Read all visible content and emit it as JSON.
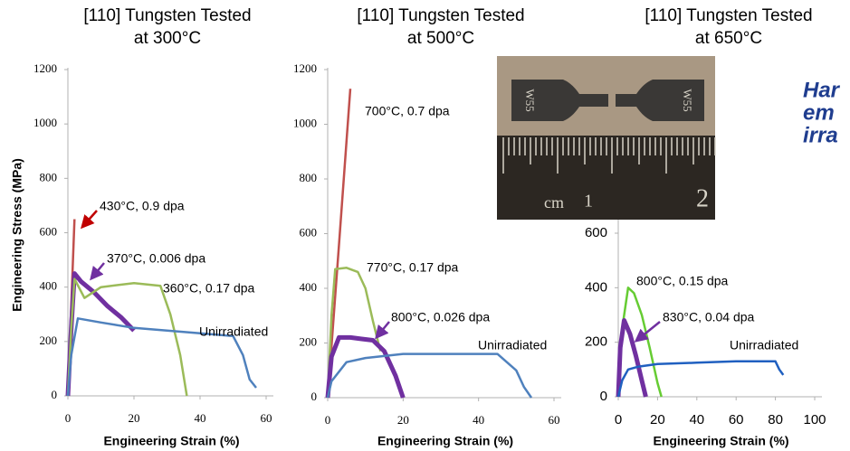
{
  "chart_data": [
    {
      "type": "line",
      "title": [
        "[110] Tungsten Tested",
        "at 300°C"
      ],
      "x_label": "Engineering Strain (%)",
      "y_label": "Engineering Stress (MPa)",
      "xlim": [
        0,
        60
      ],
      "xticks": [
        0,
        20,
        40,
        60
      ],
      "ylim": [
        0,
        1200
      ],
      "yticks": [
        0,
        200,
        400,
        600,
        800,
        1000,
        1200
      ],
      "series": [
        {
          "name": "430°C, 0.9 dpa",
          "color": "#c0504d",
          "x": [
            0,
            1,
            2
          ],
          "values": [
            0,
            330,
            650
          ]
        },
        {
          "name": "370°C, 0.006 dpa",
          "color": "#7030a0",
          "x": [
            0,
            1,
            2,
            4,
            8,
            12,
            16,
            20
          ],
          "values": [
            0,
            250,
            450,
            420,
            380,
            330,
            290,
            240
          ]
        },
        {
          "name": "360°C, 0.17 dpa",
          "color": "#9bbb59",
          "x": [
            0,
            1,
            2,
            5,
            10,
            20,
            28,
            31,
            34,
            36
          ],
          "values": [
            0,
            250,
            430,
            360,
            400,
            415,
            405,
            300,
            150,
            0
          ]
        },
        {
          "name": "Unirradiated",
          "color": "#4f81bd",
          "x": [
            0,
            1,
            3,
            10,
            20,
            30,
            40,
            50,
            53,
            55,
            57
          ],
          "values": [
            0,
            150,
            285,
            270,
            250,
            240,
            230,
            220,
            150,
            60,
            30
          ]
        }
      ]
    },
    {
      "type": "line",
      "title": [
        "[110] Tungsten Tested",
        "at 500°C"
      ],
      "x_label": "Engineering Strain (%)",
      "xlim": [
        0,
        60
      ],
      "xticks": [
        0,
        20,
        40,
        60
      ],
      "ylim": [
        0,
        1200
      ],
      "yticks": [
        0,
        200,
        400,
        600,
        800,
        1000,
        1200
      ],
      "series": [
        {
          "name": "700°C, 0.7 dpa",
          "color": "#c0504d",
          "x": [
            0,
            3,
            6
          ],
          "values": [
            0,
            560,
            1130
          ]
        },
        {
          "name": "770°C, 0.17 dpa",
          "color": "#9bbb59",
          "x": [
            0,
            1,
            2,
            5,
            8,
            10,
            12,
            14
          ],
          "values": [
            0,
            300,
            470,
            475,
            460,
            400,
            280,
            170
          ]
        },
        {
          "name": "800°C, 0.026 dpa",
          "color": "#7030a0",
          "x": [
            0,
            1,
            3,
            6,
            9,
            12,
            15,
            18,
            20
          ],
          "values": [
            0,
            150,
            220,
            220,
            215,
            210,
            170,
            80,
            0
          ]
        },
        {
          "name": "Unirradiated",
          "color": "#4f81bd",
          "x": [
            0,
            1,
            5,
            10,
            20,
            30,
            45,
            50,
            52,
            54
          ],
          "values": [
            0,
            60,
            130,
            145,
            160,
            160,
            160,
            100,
            40,
            0
          ]
        }
      ]
    },
    {
      "type": "line",
      "title": [
        "[110] Tungsten Tested",
        "at 650°C"
      ],
      "x_label": "Engineering Strain (%)",
      "xlim": [
        0,
        100
      ],
      "xticks": [
        0,
        20,
        40,
        60,
        80,
        100
      ],
      "ylim": [
        0,
        1200
      ],
      "yticks": [
        0,
        200,
        400,
        600
      ],
      "series": [
        {
          "name": "800°C, 0.15 dpa",
          "color": "#66cc33",
          "x": [
            0,
            2,
            5,
            8,
            12,
            16,
            20,
            22
          ],
          "values": [
            0,
            250,
            400,
            380,
            300,
            180,
            50,
            0
          ]
        },
        {
          "name": "830°C, 0.04 dpa",
          "color": "#7030a0",
          "x": [
            0,
            1,
            3,
            6,
            9,
            12,
            14
          ],
          "values": [
            0,
            180,
            280,
            230,
            150,
            60,
            0
          ]
        },
        {
          "name": "Unirradiated",
          "color": "#2060c0",
          "x": [
            0,
            2,
            5,
            10,
            20,
            40,
            60,
            80,
            82,
            84
          ],
          "values": [
            0,
            60,
            100,
            110,
            120,
            125,
            130,
            130,
            100,
            80
          ]
        }
      ]
    }
  ],
  "photo": {
    "labels": [
      "W55",
      "W55",
      "cm",
      "1",
      "2"
    ]
  },
  "side_text": [
    "Har",
    "em",
    "irra"
  ]
}
